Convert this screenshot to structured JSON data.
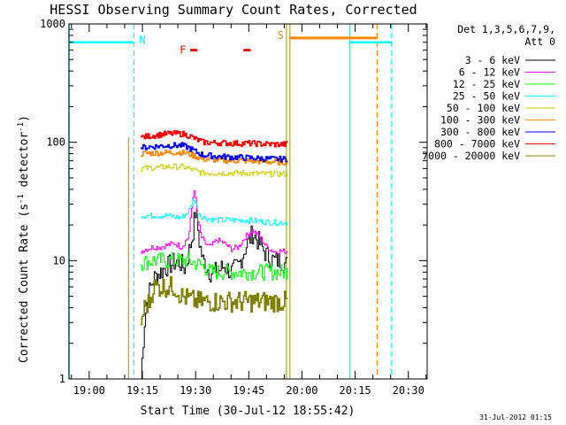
{
  "chart_data": {
    "type": "line",
    "title": "HESSI Observing Summary Count Rates, Corrected",
    "xlabel": "Start Time (30-Jul-12 18:55:42)",
    "ylabel_main": "Corrected Count Rate (s",
    "ylabel_sup1": "-1",
    "ylabel_mid": " detector",
    "ylabel_sup2": "-1",
    "ylabel_end": ")",
    "y_scale": "log",
    "ylim": [
      1,
      1000
    ],
    "xlim_minutes": [
      -5.7,
      35.6
    ],
    "x_ticks": [
      {
        "label": "19:00",
        "min": 0
      },
      {
        "label": "19:15",
        "min": 15
      },
      {
        "label": "19:30",
        "min": 30
      },
      {
        "label": "19:45",
        "min": 45
      },
      {
        "label": "20:00",
        "min": 60
      },
      {
        "label": "20:15",
        "min": 75
      },
      {
        "label": "20:30",
        "min": 90
      }
    ],
    "y_ticks": [
      {
        "label": "1",
        "v": 1
      },
      {
        "label": "10",
        "v": 10
      },
      {
        "label": "100",
        "v": 100
      },
      {
        "label": "1000",
        "v": 1000
      }
    ],
    "legend_title_1": "Det 1,3,5,6,7,9,",
    "legend_title_2": "Att 0",
    "legend_placement": "right",
    "series": [
      {
        "name": "3 - 6 keV",
        "color": "#000000",
        "points": [
          [
            14.5,
            1
          ],
          [
            15.5,
            3
          ],
          [
            16.5,
            5
          ],
          [
            18,
            7
          ],
          [
            20,
            8
          ],
          [
            22,
            9
          ],
          [
            25,
            10
          ],
          [
            27,
            8.5
          ],
          [
            29,
            16
          ],
          [
            30,
            27
          ],
          [
            31,
            14
          ],
          [
            32,
            10
          ],
          [
            34,
            8
          ],
          [
            36,
            8
          ],
          [
            38,
            9
          ],
          [
            40,
            8
          ],
          [
            42,
            9
          ],
          [
            44,
            13
          ],
          [
            46,
            17
          ],
          [
            48,
            14
          ],
          [
            50,
            11
          ],
          [
            52,
            10
          ],
          [
            54,
            10
          ],
          [
            56,
            9
          ]
        ]
      },
      {
        "name": "6 - 12 keV",
        "color": "#ff00ff",
        "points": [
          [
            14.5,
            12
          ],
          [
            16,
            12.5
          ],
          [
            18,
            13
          ],
          [
            20,
            13
          ],
          [
            22,
            13.5
          ],
          [
            24,
            14
          ],
          [
            26,
            13
          ],
          [
            28,
            16
          ],
          [
            29.5,
            42
          ],
          [
            30.5,
            22
          ],
          [
            31.5,
            16
          ],
          [
            32.5,
            14
          ],
          [
            34,
            13
          ],
          [
            36,
            15
          ],
          [
            38,
            14
          ],
          [
            40,
            12.5
          ],
          [
            42,
            13
          ],
          [
            44,
            16
          ],
          [
            46,
            18
          ],
          [
            48,
            16
          ],
          [
            50,
            13
          ],
          [
            52,
            12
          ],
          [
            54,
            12
          ],
          [
            56,
            12
          ]
        ]
      },
      {
        "name": "12 - 25 keV",
        "color": "#00ff00",
        "points": [
          [
            14.5,
            9.5
          ],
          [
            18,
            10
          ],
          [
            22,
            10
          ],
          [
            26,
            10
          ],
          [
            28,
            10
          ],
          [
            30,
            9.5
          ],
          [
            32,
            9
          ],
          [
            34,
            8
          ],
          [
            36,
            8
          ],
          [
            40,
            8
          ],
          [
            44,
            8
          ],
          [
            48,
            8
          ],
          [
            52,
            8
          ],
          [
            56,
            8
          ]
        ]
      },
      {
        "name": "25 - 50 keV",
        "color": "#00ffff",
        "points": [
          [
            14.5,
            24
          ],
          [
            18,
            24
          ],
          [
            22,
            24
          ],
          [
            26,
            23
          ],
          [
            28,
            26
          ],
          [
            29.5,
            34
          ],
          [
            30.5,
            26
          ],
          [
            32,
            23
          ],
          [
            36,
            22
          ],
          [
            40,
            22
          ],
          [
            44,
            22
          ],
          [
            48,
            21.5
          ],
          [
            52,
            21
          ],
          [
            56,
            21
          ]
        ]
      },
      {
        "name": "50 - 100 keV",
        "color": "#cccc00",
        "points": [
          [
            14.5,
            60
          ],
          [
            18,
            61
          ],
          [
            22,
            62
          ],
          [
            26,
            62
          ],
          [
            28,
            60
          ],
          [
            30,
            57
          ],
          [
            32,
            55
          ],
          [
            36,
            55
          ],
          [
            40,
            55
          ],
          [
            44,
            55
          ],
          [
            48,
            54
          ],
          [
            52,
            54
          ],
          [
            56,
            54
          ]
        ]
      },
      {
        "name": "100 - 300 keV",
        "color": "#ff8800",
        "points": [
          [
            14.5,
            80
          ],
          [
            18,
            81
          ],
          [
            22,
            82
          ],
          [
            26,
            82
          ],
          [
            28,
            80
          ],
          [
            30,
            76
          ],
          [
            32,
            72
          ],
          [
            36,
            71
          ],
          [
            40,
            70
          ],
          [
            44,
            70
          ],
          [
            48,
            69
          ],
          [
            52,
            68
          ],
          [
            56,
            68
          ]
        ]
      },
      {
        "name": "300 - 800 keV",
        "color": "#0000ff",
        "points": [
          [
            14.5,
            90
          ],
          [
            18,
            92
          ],
          [
            22,
            94
          ],
          [
            26,
            94
          ],
          [
            28,
            90
          ],
          [
            30,
            83
          ],
          [
            32,
            78
          ],
          [
            36,
            76
          ],
          [
            40,
            75
          ],
          [
            44,
            74
          ],
          [
            48,
            73
          ],
          [
            52,
            72
          ],
          [
            56,
            72
          ]
        ]
      },
      {
        "name": "800 - 7000 keV",
        "color": "#ff0000",
        "points": [
          [
            14.5,
            110
          ],
          [
            18,
            114
          ],
          [
            22,
            118
          ],
          [
            26,
            118
          ],
          [
            28,
            114
          ],
          [
            30,
            106
          ],
          [
            32,
            100
          ],
          [
            36,
            99
          ],
          [
            40,
            98
          ],
          [
            44,
            98
          ],
          [
            48,
            97
          ],
          [
            52,
            96
          ],
          [
            56,
            96
          ]
        ]
      },
      {
        "name": "7000 - 20000 keV",
        "color": "#808000",
        "points": [
          [
            14.5,
            3
          ],
          [
            15.5,
            4
          ],
          [
            17,
            4.5
          ],
          [
            18,
            6
          ],
          [
            21,
            6
          ],
          [
            24,
            6
          ],
          [
            26,
            5
          ],
          [
            30,
            4.5
          ],
          [
            34,
            4.5
          ],
          [
            38,
            4.5
          ],
          [
            42,
            4.5
          ],
          [
            46,
            4.5
          ],
          [
            50,
            4.5
          ],
          [
            54,
            4.5
          ],
          [
            56,
            4.5
          ]
        ]
      }
    ],
    "markers": {
      "night_label": "N",
      "flare_label": "F",
      "saa_label": "S",
      "night_color": "#00ffff",
      "flare_color": "#ff0000",
      "saa_color": "#ff8800",
      "saa_line_color": "#ccaa00",
      "marker_level": 700,
      "night_bars_min": [
        [
          -5.7,
          12.6
        ],
        [
          73.5,
          85.3
        ]
      ],
      "night_start_lines_min": [
        -5.7,
        73.5
      ],
      "night_end_lines_min": [
        12.6,
        85.3
      ],
      "flare_bars_min": [
        [
          28.5,
          30.5
        ],
        [
          43.5,
          45.5
        ]
      ],
      "flare_level": 600,
      "saa_bar_min": [
        56.6,
        81.2
      ],
      "saa_lines_min": [
        55.6,
        56.6
      ],
      "saa_end_line_min": 81.2,
      "data_start_line_min": 11.1
    },
    "timestamp": "31-Jul-2012 01:15"
  }
}
